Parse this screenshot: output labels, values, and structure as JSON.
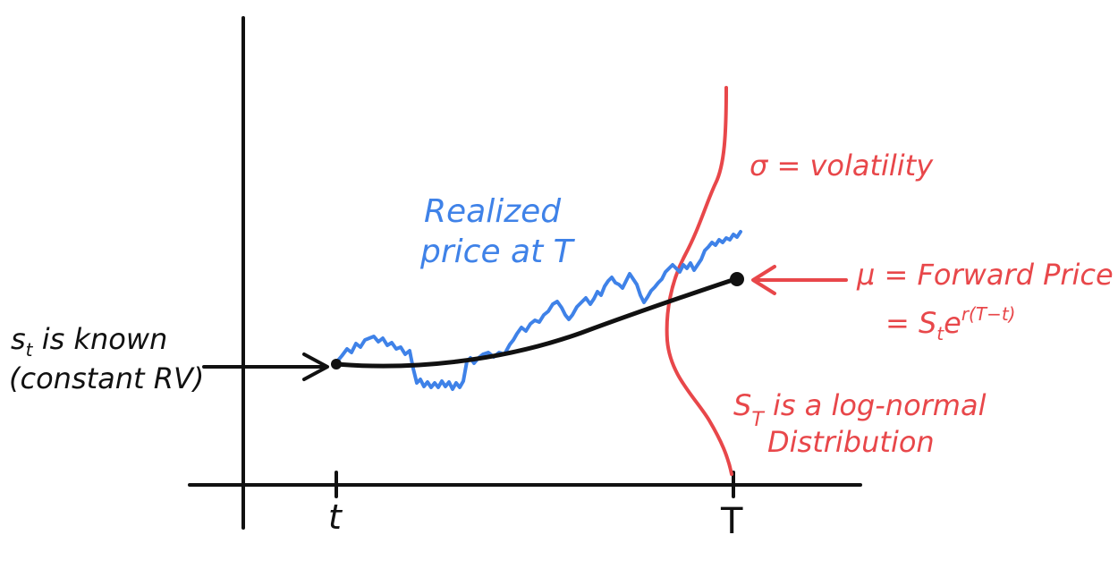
{
  "axis": {
    "left_tick": "t",
    "right_tick": "T"
  },
  "colors": {
    "ink": "#111111",
    "realized": "#3f82e8",
    "distribution": "#e8474a"
  },
  "left_note": {
    "line1": "s",
    "line1_sub": "t",
    "line1_rest": " is known",
    "line2": "(constant RV)"
  },
  "blue_note": {
    "line1": "Realized",
    "line2": "price at T"
  },
  "sigma_note": "σ = volatility",
  "mu_note": {
    "line1": "μ = Forward Price",
    "line2_prefix": "= S",
    "line2_sub": "t",
    "line2_e": "e",
    "line2_exp": "r(T−t)"
  },
  "dist_note": {
    "line1_s": "S",
    "line1_sub": "T",
    "line1_rest": " is a log-normal",
    "line2": "Distribution"
  }
}
